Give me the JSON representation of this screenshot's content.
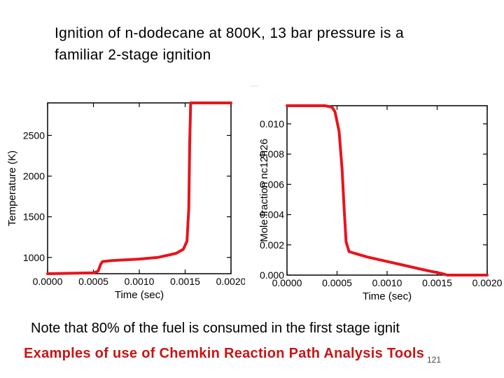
{
  "slide": {
    "title_line1": "Ignition of n-dodecane at 800K, 13 bar pressure is a",
    "title_line2": "familiar 2-stage ignition",
    "note": "Note that 80% of the fuel is consumed in the first stage ignit",
    "footer": "Examples of use of Chemkin Reaction Path Analysis Tools",
    "page_number": "121"
  },
  "chart_data": [
    {
      "type": "line",
      "title": "",
      "xlabel": "Time (sec)",
      "ylabel": "Temperature (K)",
      "xlim": [
        0.0,
        0.002
      ],
      "ylim": [
        800,
        2900
      ],
      "x_ticks": [
        0.0,
        0.0005,
        0.001,
        0.0015,
        0.002
      ],
      "x_tick_labels": [
        "0.0000",
        "0.0005",
        "0.0010",
        "0.0015",
        "0.0020"
      ],
      "y_ticks": [
        1000,
        1500,
        2000,
        2500
      ],
      "y_tick_labels": [
        "1000",
        "1500",
        "2000",
        "2500"
      ],
      "grid": false,
      "color": "#e8141c",
      "series": [
        {
          "name": "Temperature",
          "x": [
            0.0,
            0.0005,
            0.00055,
            0.00058,
            0.0006,
            0.0007,
            0.001,
            0.0012,
            0.0014,
            0.00148,
            0.00152,
            0.00154,
            0.00155,
            0.00156,
            0.0016,
            0.002
          ],
          "values": [
            800,
            810,
            830,
            920,
            950,
            962,
            980,
            1000,
            1050,
            1100,
            1200,
            1600,
            2400,
            2900,
            2900,
            2900
          ]
        }
      ]
    },
    {
      "type": "line",
      "title": "",
      "xlabel": "Time (sec)",
      "ylabel": "Mole fraction nc12h26",
      "xlim": [
        0.0,
        0.002
      ],
      "ylim": [
        0.0,
        0.0112
      ],
      "x_ticks": [
        0.0,
        0.0005,
        0.001,
        0.0015,
        0.002
      ],
      "x_tick_labels": [
        "0.0000",
        "0.0005",
        "0.0010",
        "0.0015",
        "0.0020"
      ],
      "y_ticks": [
        0.0,
        0.002,
        0.004,
        0.006,
        0.008,
        0.01
      ],
      "y_tick_labels": [
        "0.000",
        "0.002",
        "0.004",
        "0.006",
        "0.008",
        "0.010"
      ],
      "grid": false,
      "color": "#e8141c",
      "series": [
        {
          "name": "nc12h26",
          "x": [
            0.0,
            0.00038,
            0.00045,
            0.00048,
            0.00052,
            0.00055,
            0.00057,
            0.00059,
            0.00062,
            0.0008,
            0.001,
            0.0012,
            0.0014,
            0.00155,
            0.0016,
            0.002
          ],
          "values": [
            0.0112,
            0.0112,
            0.0111,
            0.0108,
            0.0095,
            0.007,
            0.0045,
            0.0022,
            0.00155,
            0.0012,
            0.0009,
            0.0006,
            0.0003,
            0.0001,
            0.0,
            0.0
          ]
        }
      ]
    }
  ]
}
